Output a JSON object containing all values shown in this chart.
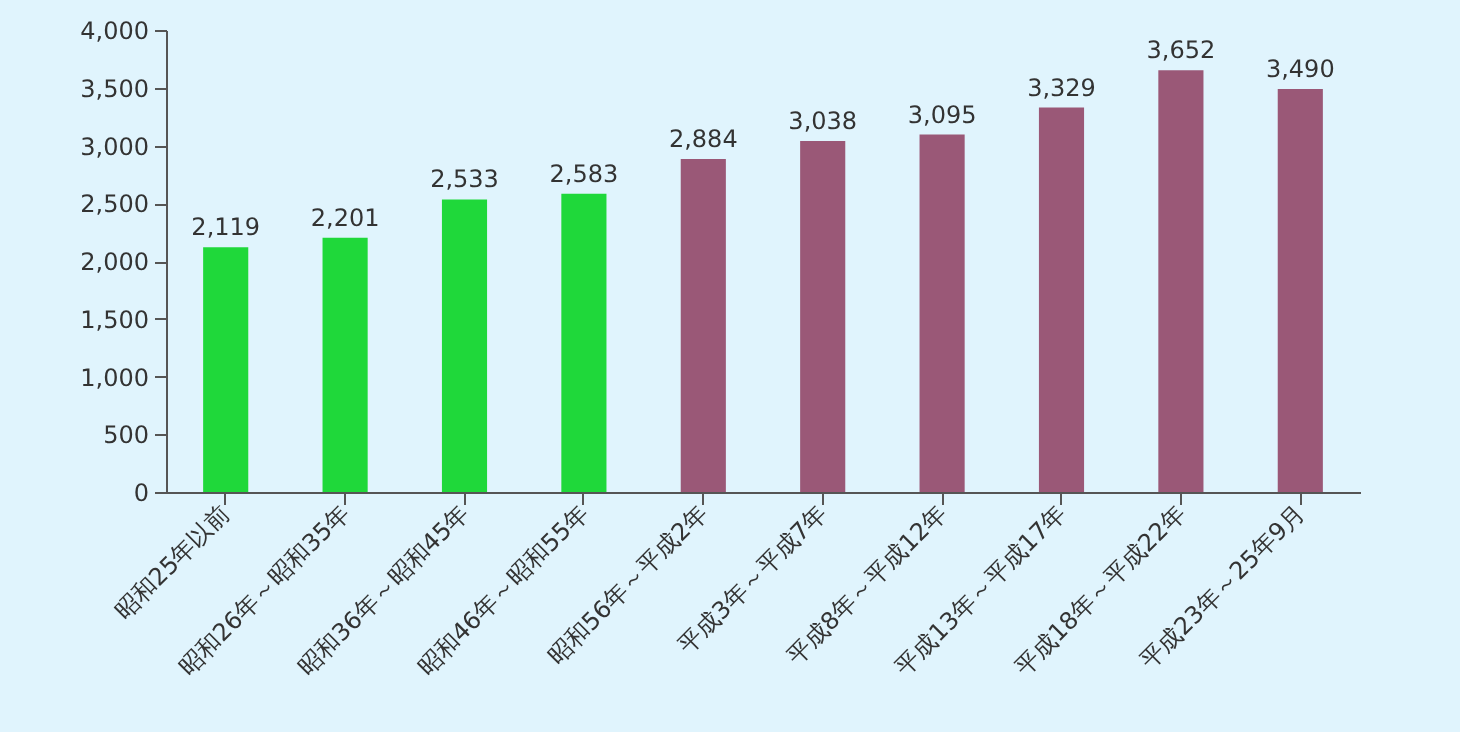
{
  "chart_data": {
    "type": "bar",
    "categories": [
      "昭和25年以前",
      "昭和26年～昭和35年",
      "昭和36年～昭和45年",
      "昭和46年～昭和55年",
      "昭和56年～平成2年",
      "平成3年～平成7年",
      "平成8年～平成12年",
      "平成13年～平成17年",
      "平成18年～平成22年",
      "平成23年～25年9月"
    ],
    "values": [
      2119,
      2201,
      2533,
      2583,
      2884,
      3038,
      3095,
      3329,
      3652,
      3490
    ],
    "value_labels": [
      "2,119",
      "2,201",
      "2,533",
      "2,583",
      "2,884",
      "3,038",
      "3,095",
      "3,329",
      "3,652",
      "3,490"
    ],
    "colors": [
      "#1fd83a",
      "#1fd83a",
      "#1fd83a",
      "#1fd83a",
      "#9a5877",
      "#9a5877",
      "#9a5877",
      "#9a5877",
      "#9a5877",
      "#9a5877"
    ],
    "ylim": [
      0,
      4000
    ],
    "yticks": [
      0,
      {
        "value": 500,
        "label": "500"
      },
      {
        "value": 1000,
        "label": "1,000"
      },
      {
        "value": 1500,
        "label": "1,500"
      },
      {
        "value": 2000,
        "label": "2,000"
      },
      {
        "value": 2500,
        "label": "2,500"
      },
      {
        "value": 3000,
        "label": "3,000"
      },
      {
        "value": 3500,
        "label": "3,500"
      },
      {
        "value": 4000,
        "label": "4,000"
      }
    ],
    "grid": false
  }
}
